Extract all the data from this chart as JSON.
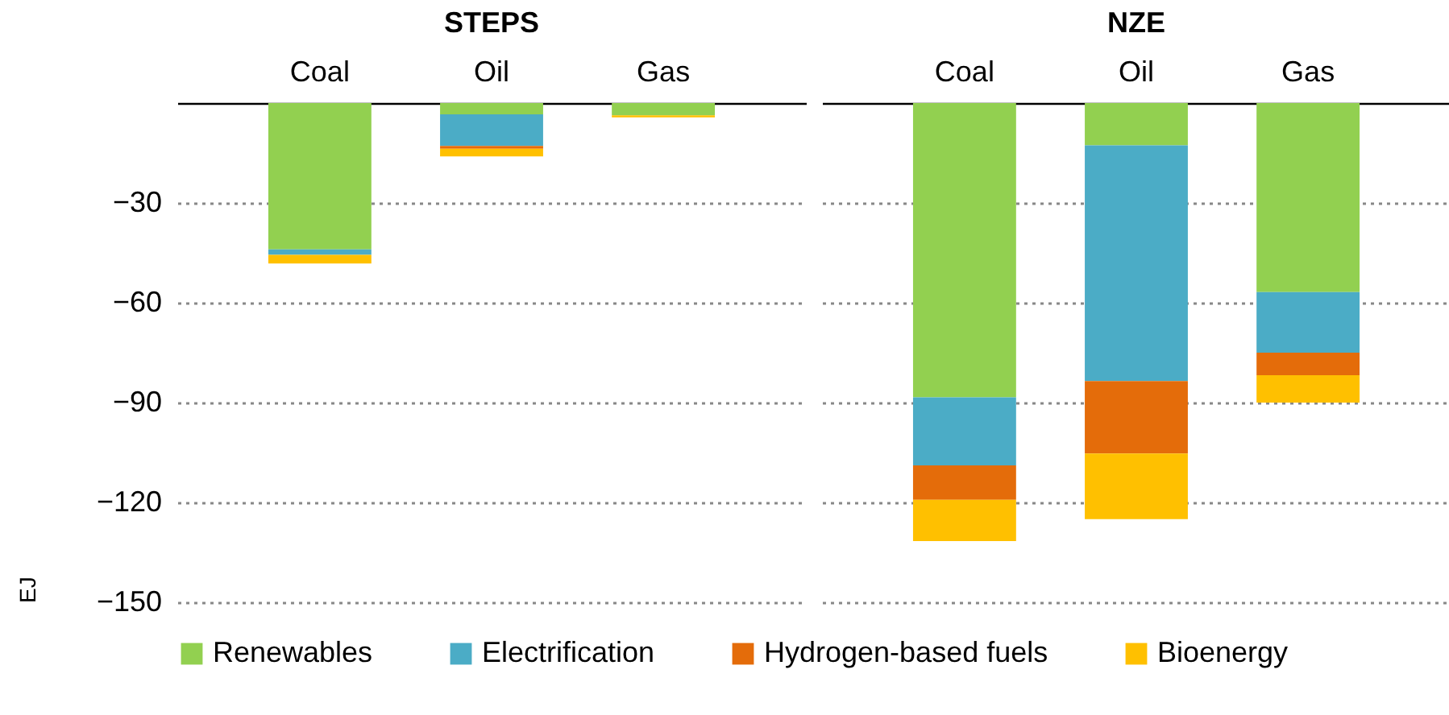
{
  "chart_data": [
    {
      "type": "bar",
      "title": "STEPS",
      "ylabel": "EJ",
      "categories": [
        "Coal",
        "Oil",
        "Gas"
      ],
      "stacked": true,
      "ylim": [
        -150,
        0
      ],
      "yticks": [
        -150,
        -120,
        -90,
        -60,
        -30
      ],
      "grid": "y",
      "legend": "bottom",
      "series": [
        {
          "name": "Renewables",
          "color": "#92d050",
          "values": [
            -44,
            -3.4,
            -3.7
          ]
        },
        {
          "name": "Electrification",
          "color": "#4bacc6",
          "values": [
            -1.6,
            -9.5,
            0
          ]
        },
        {
          "name": "Hydrogen-based fuels",
          "color": "#e46c0a",
          "values": [
            0,
            -0.8,
            0
          ]
        },
        {
          "name": "Bioenergy",
          "color": "#ffc000",
          "values": [
            -2.6,
            -2.3,
            -0.6
          ]
        }
      ]
    },
    {
      "type": "bar",
      "title": "NZE",
      "categories": [
        "Coal",
        "Oil",
        "Gas"
      ],
      "stacked": true,
      "ylim": [
        -150,
        0
      ],
      "yticks": [
        -150,
        -120,
        -90,
        -60,
        -30
      ],
      "grid": "y",
      "legend": "bottom",
      "tick_labels": "x",
      "series": [
        {
          "name": "Renewables",
          "color": "#92d050",
          "values": [
            -88.4,
            -12.7,
            -56.8
          ]
        },
        {
          "name": "Electrification",
          "color": "#4bacc6",
          "values": [
            -20.5,
            -70.8,
            -18.2
          ]
        },
        {
          "name": "Hydrogen-based fuels",
          "color": "#e46c0a",
          "values": [
            -10.3,
            -21.8,
            -6.8
          ]
        },
        {
          "name": "Bioenergy",
          "color": "#ffc000",
          "values": [
            -12.4,
            -19.7,
            -8.2
          ]
        }
      ]
    }
  ]
}
